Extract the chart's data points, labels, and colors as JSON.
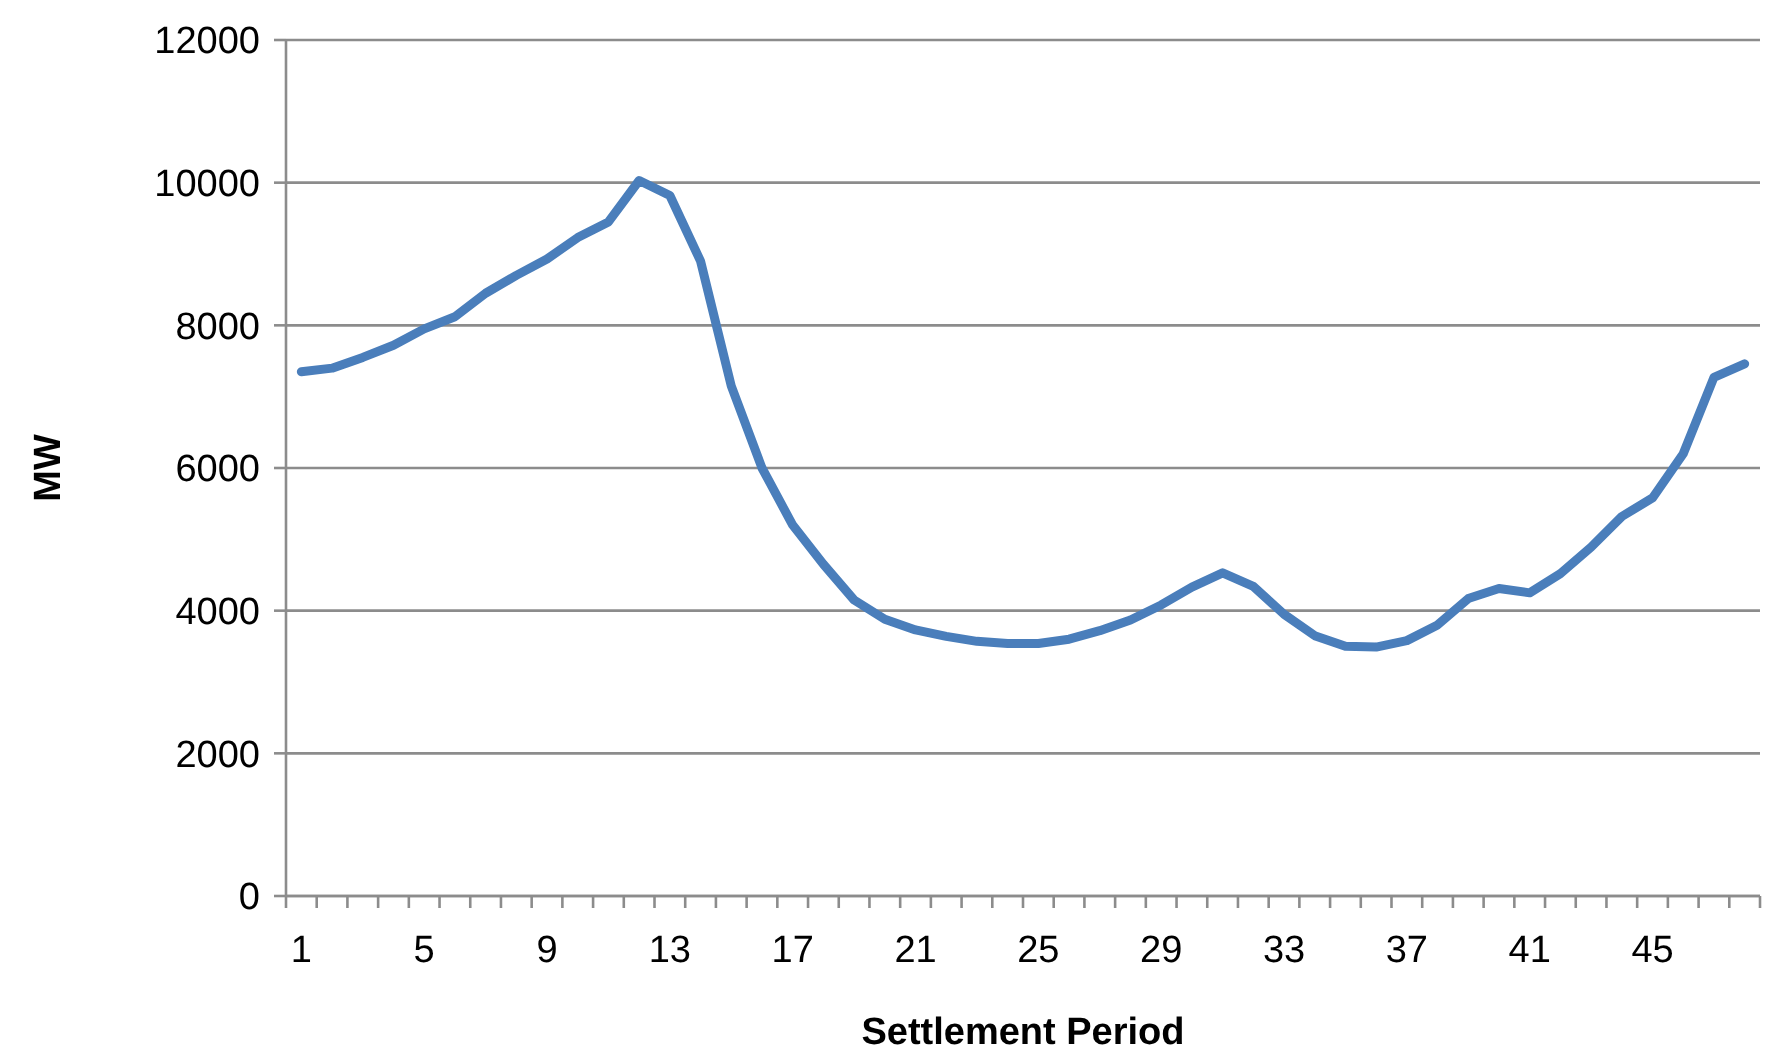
{
  "chart_data": {
    "type": "line",
    "xlabel": "Settlement Period",
    "ylabel": "MW",
    "categories": [
      "1",
      null,
      null,
      null,
      "5",
      null,
      null,
      null,
      "9",
      null,
      null,
      null,
      "13",
      null,
      null,
      null,
      "17",
      null,
      null,
      null,
      "21",
      null,
      null,
      null,
      "25",
      null,
      null,
      null,
      "29",
      null,
      null,
      null,
      "33",
      null,
      null,
      null,
      "37",
      null,
      null,
      null,
      "41",
      null,
      null,
      null,
      "45",
      null,
      null,
      null
    ],
    "series": [
      {
        "color": "#4a7ebb",
        "values": [
          7350,
          7400,
          7550,
          7720,
          7950,
          8120,
          8450,
          8700,
          8930,
          9230,
          9450,
          10030,
          9820,
          8900,
          7150,
          6000,
          5200,
          4650,
          4150,
          3880,
          3730,
          3640,
          3570,
          3540,
          3540,
          3600,
          3720,
          3870,
          4080,
          4330,
          4530,
          4340,
          3950,
          3650,
          3500,
          3490,
          3580,
          3800,
          4170,
          4310,
          4250,
          4520,
          4890,
          5320,
          5580,
          6200,
          7270,
          7460
        ]
      }
    ],
    "ylim": [
      0,
      12000
    ],
    "yticks": [
      0,
      2000,
      4000,
      6000,
      8000,
      10000,
      12000
    ],
    "grid": "y",
    "marker": "none",
    "line_style": "solid"
  }
}
